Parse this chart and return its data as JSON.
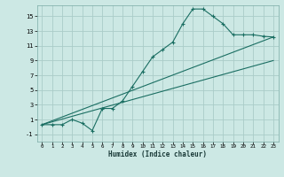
{
  "title": "",
  "xlabel": "Humidex (Indice chaleur)",
  "bg_color": "#cce8e4",
  "grid_color": "#aaccc8",
  "line_color": "#1a6e62",
  "xlim": [
    -0.5,
    23.5
  ],
  "ylim": [
    -2.0,
    16.5
  ],
  "xticks": [
    0,
    1,
    2,
    3,
    4,
    5,
    6,
    7,
    8,
    9,
    10,
    11,
    12,
    13,
    14,
    15,
    16,
    17,
    18,
    19,
    20,
    21,
    22,
    23
  ],
  "yticks": [
    -1,
    1,
    3,
    5,
    7,
    9,
    11,
    13,
    15
  ],
  "main_x": [
    0,
    1,
    2,
    3,
    4,
    5,
    6,
    7,
    8,
    9,
    10,
    11,
    12,
    13,
    14,
    15,
    16,
    17,
    18,
    19,
    20,
    21,
    22,
    23
  ],
  "main_y": [
    0.3,
    0.3,
    0.3,
    1.0,
    0.5,
    -0.5,
    2.5,
    2.5,
    3.5,
    5.5,
    7.5,
    9.5,
    10.5,
    11.5,
    14.0,
    16.0,
    16.0,
    15.0,
    14.0,
    12.5,
    12.5,
    12.5,
    12.3,
    12.2
  ],
  "line2_x": [
    0,
    23
  ],
  "line2_y": [
    0.3,
    12.2
  ],
  "line3_x": [
    0,
    23
  ],
  "line3_y": [
    0.3,
    9.0
  ],
  "figsize": [
    3.2,
    2.0
  ],
  "dpi": 100
}
